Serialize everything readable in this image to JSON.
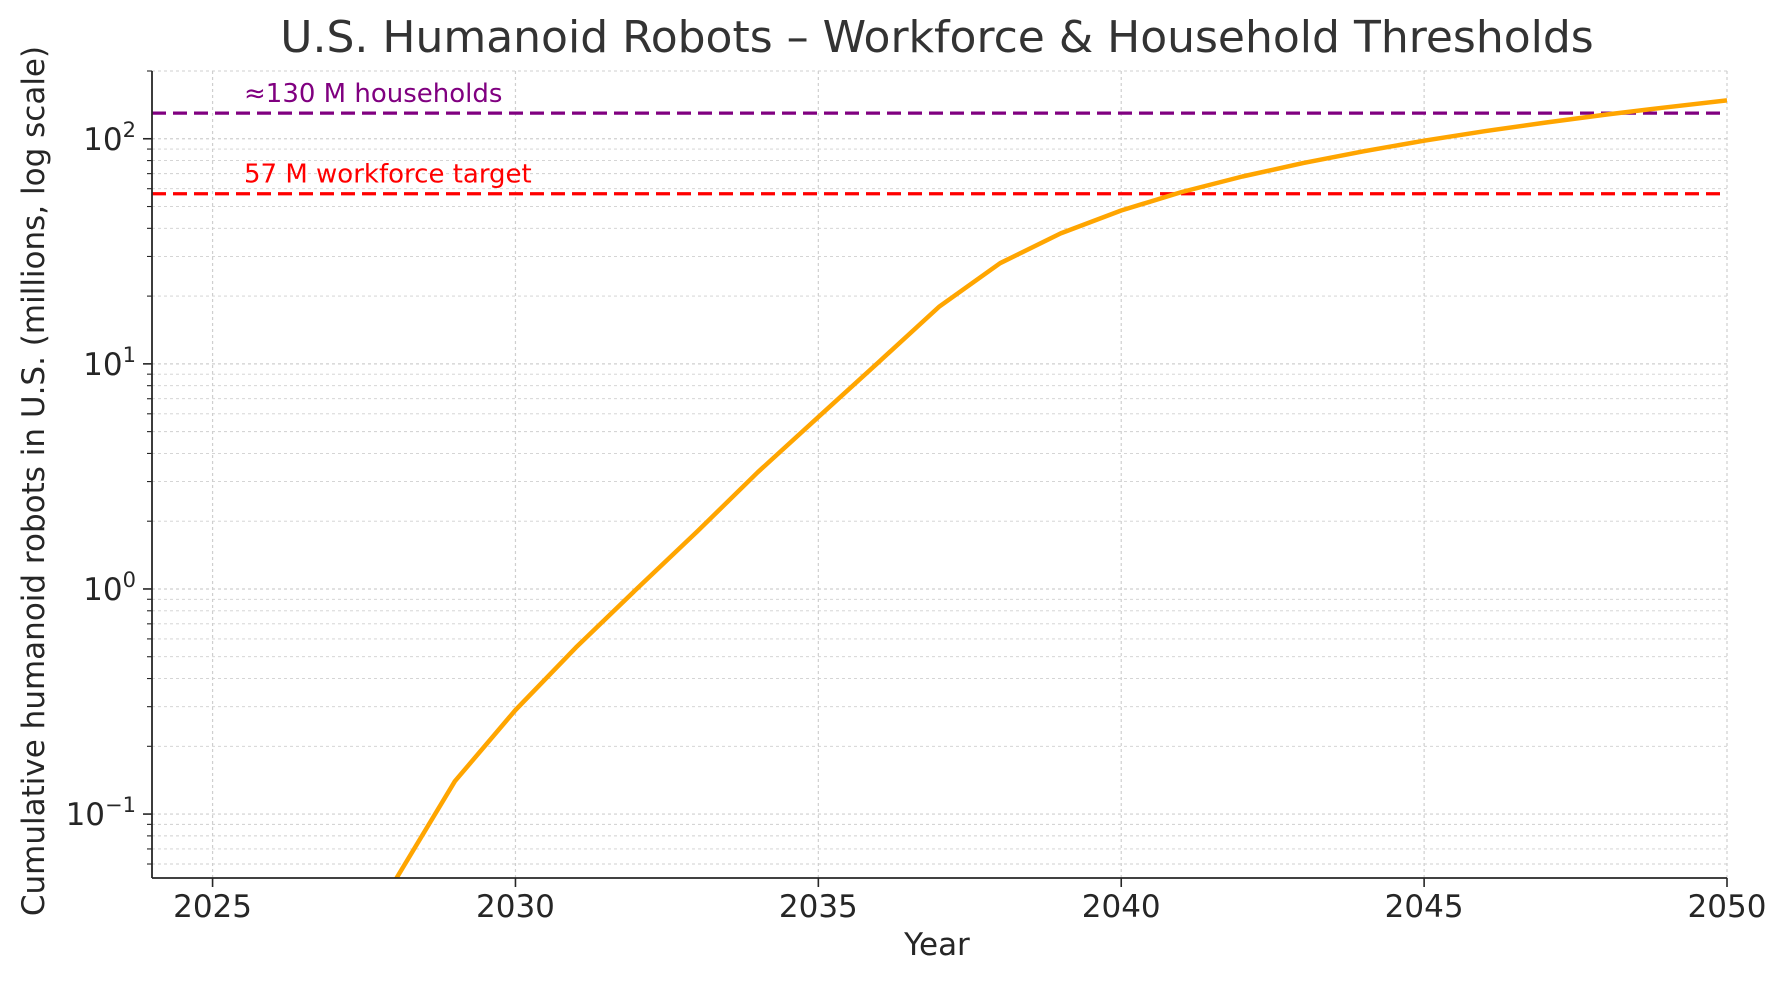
{
  "chart_data": {
    "type": "line",
    "title": "U.S. Humanoid Robots – Workforce & Household Thresholds",
    "xlabel": "Year",
    "ylabel": "Cumulative humanoid robots in U.S. (millions, log scale)",
    "xlim": [
      2024,
      2050
    ],
    "ylim": [
      0.052,
      200
    ],
    "yscale": "log",
    "grid": true,
    "x_ticks": [
      {
        "value": 2025,
        "label": "2025"
      },
      {
        "value": 2030,
        "label": "2030"
      },
      {
        "value": 2035,
        "label": "2035"
      },
      {
        "value": 2040,
        "label": "2040"
      },
      {
        "value": 2045,
        "label": "2045"
      },
      {
        "value": 2050,
        "label": "2050"
      }
    ],
    "y_ticks": [
      {
        "value": 0.1,
        "base": "10",
        "exp": "−1"
      },
      {
        "value": 1,
        "base": "10",
        "exp": "0"
      },
      {
        "value": 10,
        "base": "10",
        "exp": "1"
      },
      {
        "value": 100,
        "base": "10",
        "exp": "2"
      }
    ],
    "series": [
      {
        "color": "#FFA500",
        "x": [
          2028,
          2029,
          2030,
          2031,
          2032,
          2033,
          2034,
          2035,
          2036,
          2037,
          2038,
          2039,
          2040,
          2041,
          2042,
          2043,
          2044,
          2045,
          2046,
          2047,
          2048,
          2049,
          2050
        ],
        "y": [
          0.05,
          0.14,
          0.29,
          0.55,
          1.0,
          1.8,
          3.3,
          5.8,
          10.2,
          18,
          28,
          38,
          48,
          58,
          68,
          78,
          88,
          98,
          108,
          118,
          128,
          138,
          148
        ]
      }
    ],
    "reference_lines": [
      {
        "value": 130,
        "color": "#800080",
        "label": "≈130 M households"
      },
      {
        "value": 57,
        "color": "#FF0000",
        "label": "57 M workforce target"
      }
    ]
  }
}
